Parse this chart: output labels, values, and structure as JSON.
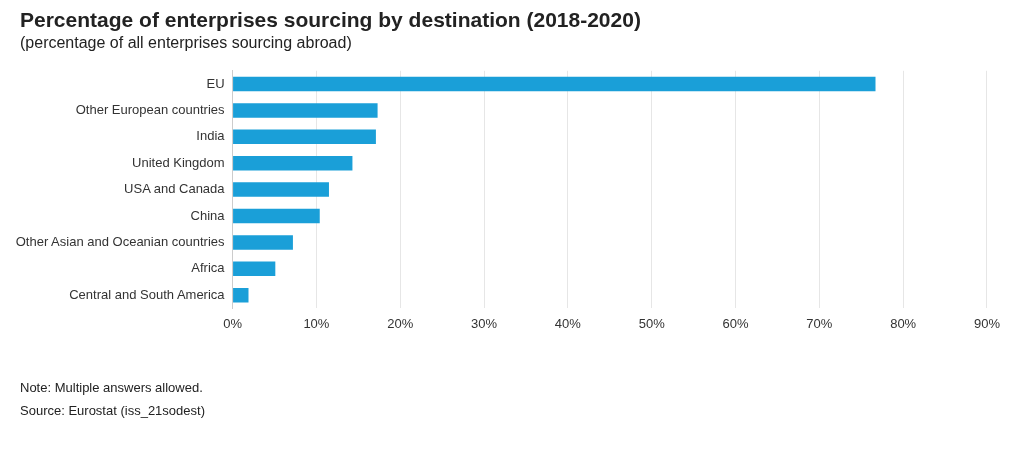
{
  "chart_data": {
    "type": "bar",
    "orientation": "horizontal",
    "title": "Percentage of enterprises sourcing by destination (2018-2020)",
    "subtitle": "(percentage of all enterprises sourcing abroad)",
    "categories": [
      "EU",
      "Other European countries",
      "India",
      "United Kingdom",
      "USA and Canada",
      "China",
      "Other Asian and Oceanian countries",
      "Africa",
      "Central and South America"
    ],
    "values": [
      76.7,
      17.3,
      17.1,
      14.3,
      11.5,
      10.4,
      7.2,
      5.1,
      1.9
    ],
    "color": "#1a9fd8",
    "xlim": [
      0,
      90
    ],
    "xticks": [
      {
        "value": 0,
        "label": "0%"
      },
      {
        "value": 10,
        "label": "10%"
      },
      {
        "value": 20,
        "label": "20%"
      },
      {
        "value": 30,
        "label": "30%"
      },
      {
        "value": 40,
        "label": "40%"
      },
      {
        "value": 50,
        "label": "50%"
      },
      {
        "value": 60,
        "label": "60%"
      },
      {
        "value": 70,
        "label": "70%"
      },
      {
        "value": 80,
        "label": "80%"
      },
      {
        "value": 90,
        "label": "90%"
      }
    ],
    "grid": "x",
    "annotations": [
      "Note: Multiple answers allowed.",
      "Source: Eurostat (iss_21sodest)"
    ]
  }
}
